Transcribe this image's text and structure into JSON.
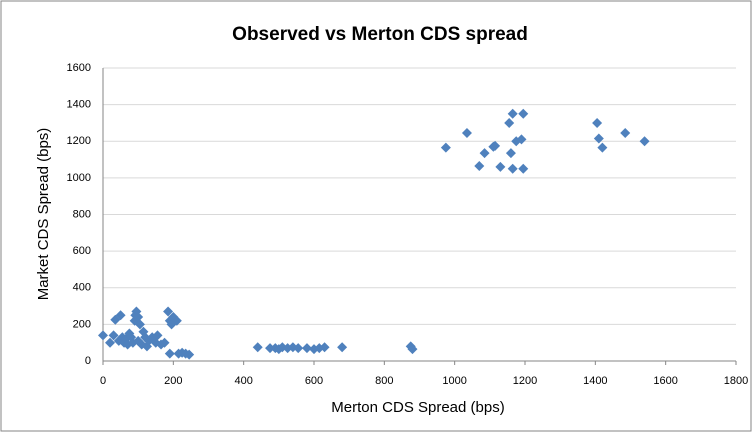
{
  "chart_data": {
    "type": "scatter",
    "title": "Observed vs Merton CDS spread",
    "x_label": "Merton CDS Spread (bps)",
    "y_label": "Market CDS Spread (bps)",
    "color": "#4f81bd",
    "grid": true,
    "xlim": [
      0,
      1800
    ],
    "xticks": [
      0,
      200,
      400,
      600,
      800,
      1000,
      1200,
      1400,
      1600,
      1800
    ],
    "ylim": [
      0,
      1600
    ],
    "yticks": [
      0,
      200,
      400,
      600,
      800,
      1000,
      1200,
      1400,
      1600
    ],
    "x": [
      975,
      1035,
      1070,
      1085,
      1110,
      1115,
      1130,
      1155,
      1160,
      1165,
      1165,
      1175,
      1190,
      1195,
      1195,
      1405,
      1410,
      1420,
      1485,
      1540,
      440,
      475,
      490,
      500,
      510,
      525,
      540,
      555,
      580,
      600,
      615,
      630,
      680,
      875,
      880,
      0,
      20,
      30,
      35,
      45,
      50,
      55,
      60,
      65,
      70,
      75,
      80,
      85,
      90,
      92,
      95,
      100,
      100,
      105,
      110,
      115,
      120,
      125,
      130,
      140,
      150,
      155,
      165,
      175,
      185,
      190,
      190,
      195,
      200,
      210,
      215,
      225,
      235,
      245
    ],
    "values": [
      1165,
      1245,
      1065,
      1135,
      1170,
      1175,
      1060,
      1300,
      1135,
      1350,
      1050,
      1200,
      1210,
      1350,
      1050,
      1300,
      1215,
      1165,
      1245,
      1200,
      75,
      70,
      70,
      65,
      75,
      70,
      75,
      70,
      70,
      65,
      70,
      75,
      75,
      80,
      65,
      140,
      100,
      140,
      225,
      110,
      250,
      130,
      100,
      120,
      90,
      150,
      130,
      100,
      220,
      250,
      270,
      240,
      110,
      200,
      90,
      160,
      130,
      80,
      110,
      130,
      100,
      140,
      90,
      100,
      270,
      220,
      40,
      200,
      240,
      220,
      40,
      45,
      40,
      35
    ]
  }
}
